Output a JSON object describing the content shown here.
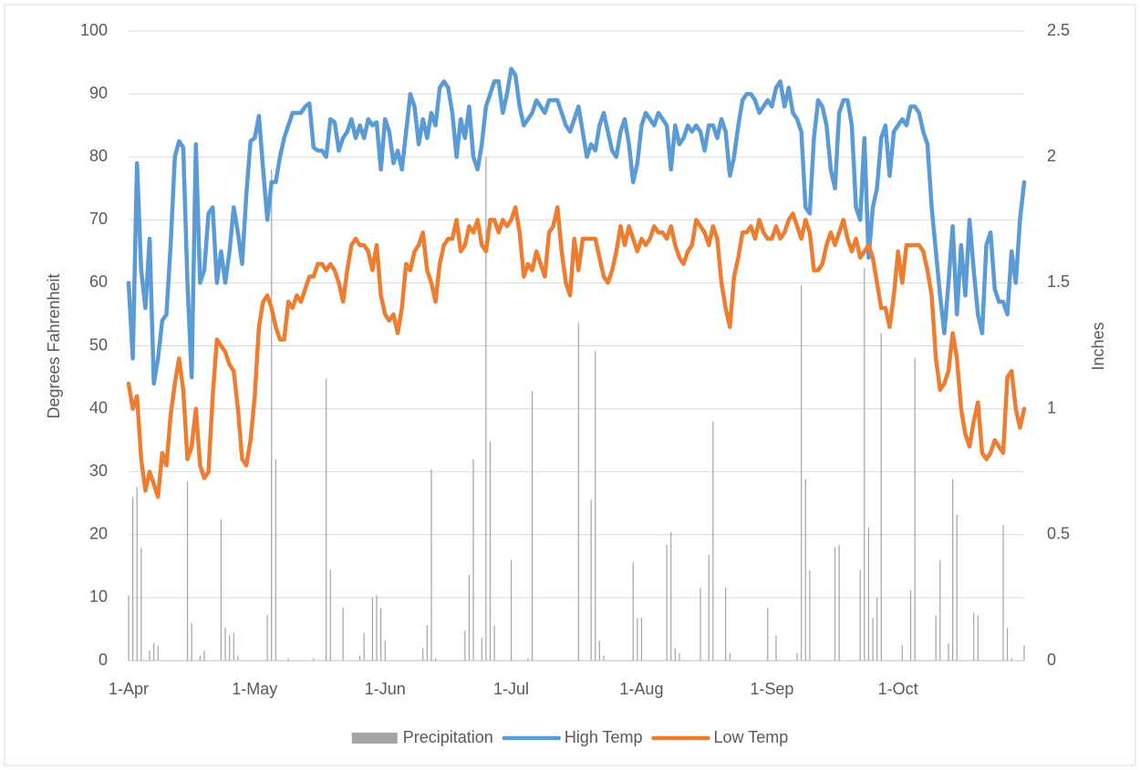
{
  "chart_data": {
    "type": "combo",
    "y_label": "Degrees Fahrenheit",
    "y2_label": "Inches",
    "ylim": [
      0,
      100
    ],
    "yticks": [
      0,
      10,
      20,
      30,
      40,
      50,
      60,
      70,
      80,
      90,
      100
    ],
    "y2lim": [
      0,
      2.5
    ],
    "y2ticks": [
      0,
      0.5,
      1,
      1.5,
      2,
      2.5
    ],
    "grid": true,
    "legend": "bottom",
    "categories": [
      "1-Apr",
      null,
      null,
      null,
      null,
      null,
      null,
      null,
      null,
      null,
      null,
      null,
      null,
      null,
      null,
      null,
      null,
      null,
      null,
      null,
      null,
      null,
      null,
      null,
      null,
      null,
      null,
      null,
      null,
      null,
      "1-May",
      null,
      null,
      null,
      null,
      null,
      null,
      null,
      null,
      null,
      null,
      null,
      null,
      null,
      null,
      null,
      null,
      null,
      null,
      null,
      null,
      null,
      null,
      null,
      null,
      null,
      null,
      null,
      null,
      null,
      null,
      "1-Jun",
      null,
      null,
      null,
      null,
      null,
      null,
      null,
      null,
      null,
      null,
      null,
      null,
      null,
      null,
      null,
      null,
      null,
      null,
      null,
      null,
      null,
      null,
      null,
      null,
      null,
      null,
      null,
      null,
      null,
      "1-Jul",
      null,
      null,
      null,
      null,
      null,
      null,
      null,
      null,
      null,
      null,
      null,
      null,
      null,
      null,
      null,
      null,
      null,
      null,
      null,
      null,
      null,
      null,
      null,
      null,
      null,
      null,
      null,
      null,
      null,
      null,
      "1-Aug",
      null,
      null,
      null,
      null,
      null,
      null,
      null,
      null,
      null,
      null,
      null,
      null,
      null,
      null,
      null,
      null,
      null,
      null,
      null,
      null,
      null,
      null,
      null,
      null,
      null,
      null,
      null,
      null,
      null,
      null,
      "1-Sep",
      null,
      null,
      null,
      null,
      null,
      null,
      null,
      null,
      null,
      null,
      null,
      null,
      null,
      null,
      null,
      null,
      null,
      null,
      null,
      null,
      null,
      null,
      null,
      null,
      null,
      null,
      null,
      null,
      null,
      "1-Oct",
      null,
      null,
      null,
      null,
      null,
      null,
      null,
      null,
      null,
      null,
      null,
      null,
      null,
      null,
      null,
      null,
      null,
      null,
      null,
      null,
      null,
      null,
      null,
      null,
      null,
      null,
      null,
      null,
      null,
      null
    ],
    "series": [
      {
        "name": "Precipitation",
        "type": "bar",
        "axis": "y2",
        "color": "#a5a5a5",
        "values": [
          0.26,
          0.65,
          0.69,
          0.45,
          0,
          0.04,
          0.07,
          0.06,
          0,
          0,
          0,
          0,
          0,
          0,
          0.71,
          0.15,
          0,
          0.02,
          0.04,
          0,
          0,
          0,
          0.56,
          0.13,
          0.1,
          0.11,
          0.02,
          0,
          0,
          0,
          0,
          0,
          0,
          0.18,
          1.95,
          0.8,
          0,
          0,
          0.01,
          0,
          0,
          0,
          0,
          0,
          0.01,
          0,
          0,
          1.12,
          0.36,
          0,
          0,
          0.21,
          0,
          0,
          0,
          0.02,
          0.11,
          0,
          0.25,
          0.26,
          0.21,
          0.08,
          0,
          0,
          0,
          0,
          0,
          0,
          0,
          0,
          0.05,
          0.14,
          0.76,
          0.01,
          0,
          0,
          0,
          0,
          0,
          0,
          0.12,
          0.34,
          0.8,
          0,
          0.09,
          2.0,
          0.87,
          0.14,
          0,
          0,
          0,
          0.4,
          0,
          0,
          0,
          0.01,
          1.07,
          0,
          0,
          0,
          0,
          0,
          0,
          0,
          0,
          0,
          0,
          1.34,
          0,
          0,
          0.64,
          1.23,
          0.08,
          0.02,
          0,
          0,
          0,
          0,
          0,
          0,
          0.39,
          0.17,
          0.17,
          0,
          0,
          0,
          0,
          0,
          0.46,
          0.51,
          0.05,
          0.03,
          0,
          0,
          0,
          0,
          0.29,
          0,
          0.42,
          0.95,
          0,
          0,
          0.29,
          0.03,
          0,
          0,
          0,
          0,
          0,
          0,
          0,
          0,
          0.21,
          0,
          0.1,
          0,
          0,
          0,
          0,
          0.03,
          1.49,
          0.72,
          0.36,
          0,
          0,
          0,
          0,
          0,
          0.45,
          0.46,
          0,
          0,
          0,
          0,
          0.36,
          1.56,
          0.53,
          0.17,
          0.25,
          1.3,
          0,
          0,
          0,
          0,
          0.06,
          0,
          0.28,
          1.2,
          0,
          0,
          0,
          0,
          0.18,
          0.4,
          0,
          0.07,
          0.72,
          0.58,
          0,
          0,
          0,
          0.19,
          0.18,
          0,
          0,
          0,
          0,
          0,
          0.54,
          0.13,
          0.01,
          0,
          0,
          0.06
        ]
      },
      {
        "name": "High Temp",
        "type": "line",
        "color": "#5b9bd5",
        "values": [
          60,
          48,
          79,
          62,
          56,
          67,
          44,
          48,
          54,
          55,
          66,
          80,
          82.5,
          81.5,
          60,
          45,
          82,
          60,
          62,
          71,
          72,
          60,
          65,
          60,
          65,
          72,
          68,
          63,
          74,
          82.5,
          83,
          86.5,
          78,
          70,
          76,
          76,
          80,
          83,
          85,
          87,
          87,
          87,
          88,
          88.5,
          81.5,
          81,
          81,
          80,
          86,
          85.5,
          81,
          83,
          84,
          86,
          83,
          85,
          83,
          86,
          85,
          85.5,
          78,
          86,
          84,
          79,
          81,
          78,
          84,
          90,
          88,
          82,
          86,
          83,
          87,
          85,
          91,
          92,
          91,
          87,
          80,
          86,
          83,
          88,
          80,
          78,
          82,
          88,
          90,
          92,
          92,
          87,
          90,
          94,
          93,
          88,
          85,
          86,
          87,
          89,
          88,
          87,
          89,
          89,
          89,
          87,
          85,
          84,
          86,
          88,
          84,
          80,
          82,
          81,
          85,
          87,
          84,
          81,
          80,
          84,
          86,
          82,
          76,
          79,
          85,
          87,
          86,
          85,
          87,
          86,
          85,
          78,
          85,
          82,
          83,
          85,
          84,
          85,
          84,
          81,
          85,
          85,
          83,
          86,
          84,
          77,
          80,
          85,
          89,
          90,
          90,
          89,
          87,
          88,
          89,
          88,
          91,
          92,
          88,
          91,
          87,
          86,
          84,
          72,
          71,
          83,
          89,
          88,
          85,
          78,
          75,
          87,
          89,
          89,
          85,
          72,
          70,
          83,
          64,
          72,
          75,
          83,
          85,
          77,
          84,
          85,
          86,
          85,
          88,
          88,
          87,
          84,
          82,
          72,
          65,
          58,
          52,
          60,
          69,
          55,
          66,
          58,
          70,
          62,
          55,
          52,
          66,
          68,
          59,
          57,
          57,
          55,
          65,
          60,
          70,
          76
        ]
      },
      {
        "name": "Low Temp",
        "type": "line",
        "color": "#ed7d31",
        "values": [
          44,
          40,
          42,
          32,
          27,
          30,
          28,
          26,
          33,
          31,
          39,
          44,
          48,
          43,
          32,
          34,
          40,
          31,
          29,
          30,
          42,
          51,
          50,
          49,
          47,
          46,
          40,
          32,
          31,
          35,
          42,
          53,
          57,
          58,
          56,
          53,
          51,
          51,
          57,
          56,
          58,
          57,
          59,
          61,
          61,
          63,
          63,
          62,
          63,
          62,
          60,
          57,
          62,
          66,
          67,
          66,
          66,
          65,
          62,
          66,
          58,
          55,
          54,
          55,
          52,
          56,
          63,
          62,
          65,
          66,
          68,
          62,
          60,
          57,
          63,
          66,
          67,
          67,
          70,
          65,
          66,
          69,
          68,
          70,
          66,
          65,
          70,
          70,
          68,
          70,
          69,
          70,
          72,
          68,
          61,
          63,
          62,
          65,
          63,
          61,
          68,
          69,
          72,
          65,
          60,
          58,
          67,
          62,
          67,
          67,
          67,
          67,
          64,
          61,
          60,
          62,
          65,
          69,
          66,
          69,
          67,
          65,
          67,
          66,
          67,
          69,
          68,
          68,
          67,
          69,
          66,
          64,
          63,
          65,
          66,
          70,
          69,
          68,
          66,
          69,
          67,
          60,
          56,
          53,
          61,
          64,
          68,
          68,
          69,
          67,
          70,
          68,
          67,
          67,
          69,
          67,
          68,
          70,
          71,
          69,
          67,
          70,
          68,
          62,
          62,
          63,
          66,
          68,
          66,
          68,
          70,
          67,
          65,
          67,
          64,
          65,
          66,
          64,
          60,
          56,
          56,
          53,
          58,
          65,
          60,
          66,
          66,
          66,
          66,
          65,
          62,
          58,
          48,
          43,
          44,
          46,
          52,
          48,
          40,
          36,
          34,
          38,
          41,
          33,
          32,
          33,
          35,
          34,
          33,
          45,
          46,
          40,
          37,
          40
        ]
      }
    ]
  }
}
